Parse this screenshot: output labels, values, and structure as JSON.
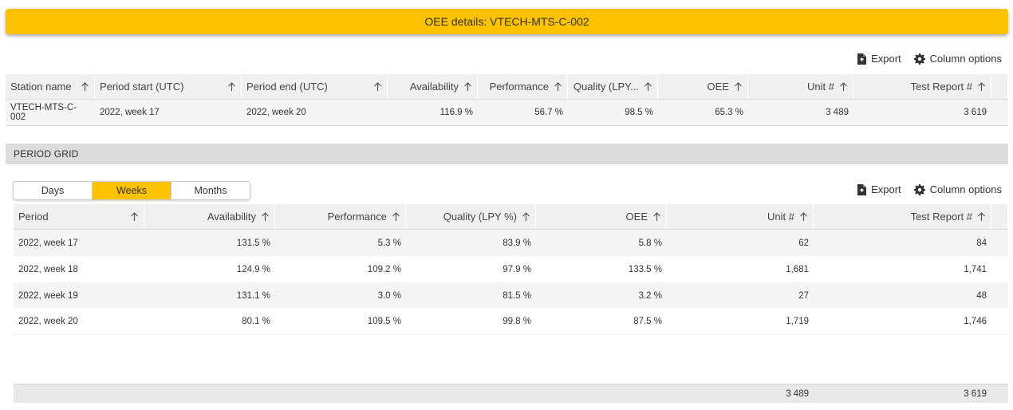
{
  "title": "OEE details: VTECH-MTS-C-002",
  "toolbar": {
    "export_label": "Export",
    "column_options_label": "Column options"
  },
  "summary": {
    "columns": [
      "Station name",
      "Period start (UTC)",
      "Period end (UTC)",
      "Availability",
      "Performance",
      "Quality (LPY...",
      "OEE",
      "Unit #",
      "Test Report #"
    ],
    "row": [
      "VTECH-MTS-C-002",
      "2022, week 17",
      "2022, week 20",
      "116.9 %",
      "56.7 %",
      "98.5 %",
      "65.3 %",
      "3 489",
      "3 619"
    ]
  },
  "period_grid": {
    "section_title": "PERIOD GRID",
    "toggle": {
      "options": [
        "Days",
        "Weeks",
        "Months"
      ],
      "selected": "Weeks"
    },
    "columns": [
      "Period",
      "Availability",
      "Performance",
      "Quality (LPY %)",
      "OEE",
      "Unit #",
      "Test Report #"
    ],
    "rows": [
      [
        "2022, week 17",
        "131.5 %",
        "5.3 %",
        "83.9 %",
        "5.8 %",
        "62",
        "84"
      ],
      [
        "2022, week 18",
        "124.9 %",
        "109.2 %",
        "97.9 %",
        "133.5 %",
        "1,681",
        "1,741"
      ],
      [
        "2022, week 19",
        "131.1 %",
        "3.0 %",
        "81.5 %",
        "3.2 %",
        "27",
        "48"
      ],
      [
        "2022, week 20",
        "80.1 %",
        "109.5 %",
        "99.8 %",
        "87.5 %",
        "1,719",
        "1,746"
      ]
    ],
    "totals": {
      "unit": "3 489",
      "test_report": "3 619"
    }
  },
  "colors": {
    "accent": "#fcc200",
    "header_bg": "#f0f0f0",
    "stripe": "#f5f5f5",
    "section_bg": "#dcdcdc"
  }
}
